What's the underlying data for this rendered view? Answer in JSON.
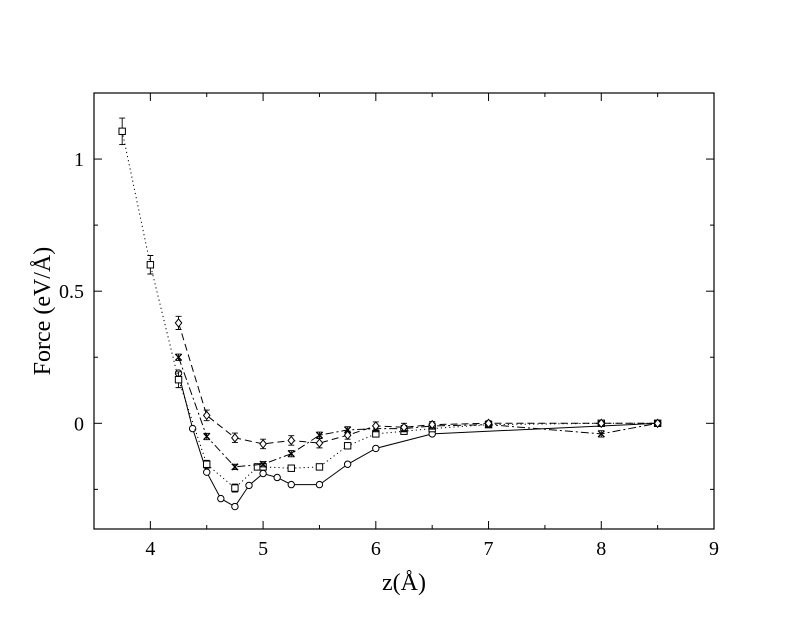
{
  "chart_data": {
    "type": "line",
    "title": "",
    "xlabel": "z(Å)",
    "ylabel": "Force (eV/Å)",
    "xlim": [
      3.5,
      9
    ],
    "ylim": [
      -0.4,
      1.25
    ],
    "x_ticks": [
      4,
      5,
      6,
      7,
      8,
      9
    ],
    "x_tick_labels": [
      "4",
      "5",
      "6",
      "7",
      "8",
      "9"
    ],
    "y_ticks": [
      0,
      0.5,
      1
    ],
    "y_tick_labels": [
      "0",
      "0.5",
      "1"
    ],
    "grid": false,
    "legend": "none",
    "series": [
      {
        "line_style": "solid",
        "marker": "circle",
        "color": "#000000",
        "points": [
          {
            "x": 4.25,
            "y": 0.19,
            "err": 0.0
          },
          {
            "x": 4.375,
            "y": -0.02,
            "err": 0.0
          },
          {
            "x": 4.5,
            "y": -0.185,
            "err": 0.0
          },
          {
            "x": 4.625,
            "y": -0.285,
            "err": 0.0
          },
          {
            "x": 4.75,
            "y": -0.315,
            "err": 0.0
          },
          {
            "x": 4.875,
            "y": -0.235,
            "err": 0.0
          },
          {
            "x": 5.0,
            "y": -0.19,
            "err": 0.0
          },
          {
            "x": 5.125,
            "y": -0.205,
            "err": 0.0
          },
          {
            "x": 5.25,
            "y": -0.232,
            "err": 0.0
          },
          {
            "x": 5.5,
            "y": -0.232,
            "err": 0.0
          },
          {
            "x": 5.75,
            "y": -0.155,
            "err": 0.0
          },
          {
            "x": 6.0,
            "y": -0.095,
            "err": 0.0
          },
          {
            "x": 6.5,
            "y": -0.04,
            "err": 0.0
          },
          {
            "x": 8.5,
            "y": 0.0,
            "err": 0.0
          }
        ]
      },
      {
        "line_style": "dotted",
        "marker": "square",
        "color": "#000000",
        "points": [
          {
            "x": 3.75,
            "y": 1.105,
            "err": 0.05
          },
          {
            "x": 4.0,
            "y": 0.6,
            "err": 0.035
          },
          {
            "x": 4.25,
            "y": 0.165,
            "err": 0.03
          },
          {
            "x": 4.5,
            "y": -0.155,
            "err": 0.015
          },
          {
            "x": 4.75,
            "y": -0.245,
            "err": 0.015
          },
          {
            "x": 4.95,
            "y": -0.165,
            "err": 0.01
          },
          {
            "x": 5.0,
            "y": -0.165,
            "err": 0.01
          },
          {
            "x": 5.25,
            "y": -0.17,
            "err": 0.01
          },
          {
            "x": 5.5,
            "y": -0.165,
            "err": 0.01
          },
          {
            "x": 5.75,
            "y": -0.085,
            "err": 0.01
          },
          {
            "x": 6.0,
            "y": -0.04,
            "err": 0.01
          },
          {
            "x": 6.25,
            "y": -0.03,
            "err": 0.01
          },
          {
            "x": 6.5,
            "y": -0.02,
            "err": 0.01
          },
          {
            "x": 7.0,
            "y": -0.005,
            "err": 0.005
          },
          {
            "x": 8.0,
            "y": 0.0,
            "err": 0.005
          },
          {
            "x": 8.5,
            "y": 0.0,
            "err": 0.0
          }
        ]
      },
      {
        "line_style": "dash-dot",
        "marker": "x",
        "color": "#000000",
        "points": [
          {
            "x": 4.25,
            "y": 0.25,
            "err": 0.012
          },
          {
            "x": 4.5,
            "y": -0.05,
            "err": 0.012
          },
          {
            "x": 4.75,
            "y": -0.165,
            "err": 0.01
          },
          {
            "x": 5.0,
            "y": -0.155,
            "err": 0.01
          },
          {
            "x": 5.25,
            "y": -0.115,
            "err": 0.012
          },
          {
            "x": 5.5,
            "y": -0.045,
            "err": 0.012
          },
          {
            "x": 5.75,
            "y": -0.025,
            "err": 0.012
          },
          {
            "x": 6.0,
            "y": -0.02,
            "err": 0.012
          },
          {
            "x": 6.25,
            "y": -0.02,
            "err": 0.012
          },
          {
            "x": 6.5,
            "y": -0.01,
            "err": 0.012
          },
          {
            "x": 7.0,
            "y": -0.005,
            "err": 0.01
          },
          {
            "x": 8.0,
            "y": -0.04,
            "err": 0.012
          },
          {
            "x": 8.5,
            "y": 0.0,
            "err": 0.0
          }
        ]
      },
      {
        "line_style": "dashed",
        "marker": "diamond",
        "color": "#000000",
        "points": [
          {
            "x": 4.25,
            "y": 0.38,
            "err": 0.025
          },
          {
            "x": 4.5,
            "y": 0.03,
            "err": 0.02
          },
          {
            "x": 4.75,
            "y": -0.055,
            "err": 0.018
          },
          {
            "x": 5.0,
            "y": -0.078,
            "err": 0.018
          },
          {
            "x": 5.25,
            "y": -0.065,
            "err": 0.018
          },
          {
            "x": 5.5,
            "y": -0.075,
            "err": 0.018
          },
          {
            "x": 5.75,
            "y": -0.045,
            "err": 0.015
          },
          {
            "x": 6.0,
            "y": -0.01,
            "err": 0.015
          },
          {
            "x": 6.25,
            "y": -0.015,
            "err": 0.015
          },
          {
            "x": 6.5,
            "y": -0.005,
            "err": 0.012
          },
          {
            "x": 7.0,
            "y": 0.0,
            "err": 0.01
          },
          {
            "x": 8.0,
            "y": 0.0,
            "err": 0.008
          },
          {
            "x": 8.5,
            "y": 0.0,
            "err": 0.0
          }
        ]
      }
    ]
  }
}
